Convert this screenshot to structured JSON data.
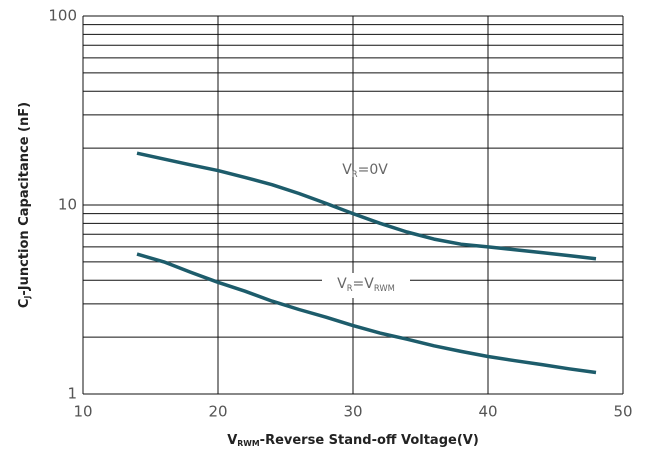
{
  "chart_data": {
    "type": "line",
    "xlabel": [
      "V",
      "RWM",
      "-Reverse Stand-off Voltage(V)"
    ],
    "ylabel": [
      "C",
      "J",
      "-Junction Capacitance (nF)"
    ],
    "x": [
      14,
      16,
      18,
      20,
      22,
      24,
      26,
      28,
      30,
      32,
      34,
      36,
      38,
      40,
      42,
      44,
      46,
      48
    ],
    "series": [
      {
        "color": "#1d5c6b",
        "values": [
          18.8,
          17.5,
          16.3,
          15.2,
          14.0,
          12.8,
          11.5,
          10.2,
          9.0,
          8.0,
          7.2,
          6.6,
          6.2,
          6.0,
          5.8,
          5.6,
          5.4,
          5.2
        ]
      },
      {
        "color": "#1d5c6b",
        "values": [
          5.5,
          5.0,
          4.4,
          3.9,
          3.5,
          3.1,
          2.8,
          2.55,
          2.3,
          2.1,
          1.95,
          1.8,
          1.68,
          1.58,
          1.5,
          1.43,
          1.36,
          1.3
        ]
      }
    ],
    "annotations": [
      {
        "text": [
          "V",
          "R",
          "=0V"
        ]
      },
      {
        "text": [
          "V",
          "R",
          "=V",
          "RWM"
        ]
      }
    ],
    "xlim": [
      10,
      50
    ],
    "xticks": [
      10,
      20,
      30,
      40,
      50
    ],
    "ylim": [
      1,
      100
    ],
    "yticks": [
      1,
      10,
      100
    ],
    "yminor": [
      2,
      3,
      4,
      5,
      6,
      7,
      8,
      9,
      20,
      30,
      40,
      50,
      60,
      70,
      80,
      90
    ],
    "log_y": true,
    "grid": true
  }
}
